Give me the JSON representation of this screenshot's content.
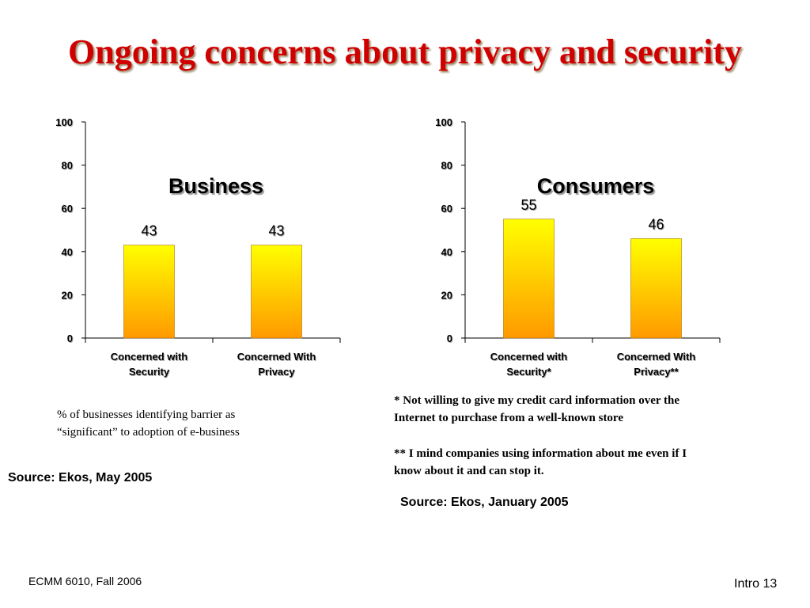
{
  "slide": {
    "title": "Ongoing concerns about privacy and security",
    "footer_left": "ECMM 6010, Fall 2006",
    "footer_right": "Intro 13"
  },
  "colors": {
    "title": "#d00000",
    "bar_top": "#ffff00",
    "bar_bottom": "#ff9900"
  },
  "chart_data": [
    {
      "type": "bar",
      "title": "Business",
      "categories": [
        [
          "Concerned with",
          "Security"
        ],
        [
          "Concerned With",
          "Privacy"
        ]
      ],
      "values": [
        43,
        43
      ],
      "ylim": [
        0,
        100
      ],
      "yticks": [
        0,
        20,
        40,
        60,
        80,
        100
      ],
      "grid": false,
      "caption": [
        "% of businesses identifying barrier as",
        "“significant” to adoption of e-business"
      ],
      "source": "Source: Ekos, May 2005"
    },
    {
      "type": "bar",
      "title": "Consumers",
      "categories": [
        [
          "Concerned with",
          "Security*"
        ],
        [
          "Concerned With",
          "Privacy**"
        ]
      ],
      "values": [
        55,
        46
      ],
      "ylim": [
        0,
        100
      ],
      "yticks": [
        0,
        20,
        40,
        60,
        80,
        100
      ],
      "grid": false,
      "notes": [
        [
          "* Not willing to give my credit card information over the",
          "Internet to purchase from a well-known store"
        ],
        [
          "** I mind companies using information about me even if I",
          "know about it and can stop it."
        ]
      ],
      "source": "Source: Ekos, January 2005"
    }
  ]
}
